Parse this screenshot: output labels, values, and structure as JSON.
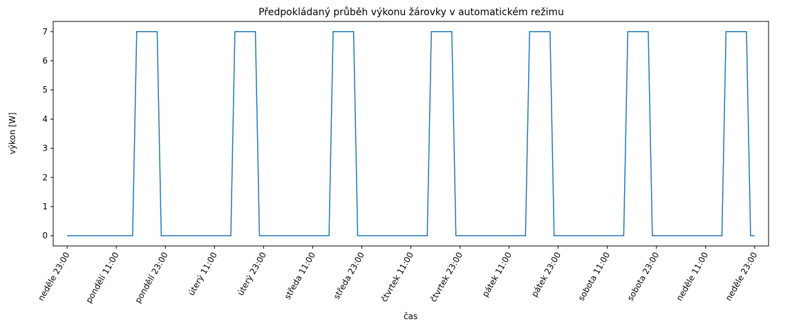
{
  "chart_data": {
    "type": "line",
    "title": "Předpokládaný průběh výkonu žárovky v automatickém režimu",
    "xlabel": "čas",
    "ylabel": "výkon [W]",
    "x": [
      0,
      16,
      17,
      22,
      23,
      40,
      41,
      46,
      47,
      64,
      65,
      70,
      71,
      88,
      89,
      94,
      95,
      112,
      113,
      118,
      119,
      136,
      137,
      142,
      143,
      160,
      161,
      166,
      167,
      168
    ],
    "series": [
      {
        "name": "výkon",
        "color": "#1f77b4",
        "values": [
          0,
          0,
          7,
          7,
          0,
          0,
          7,
          7,
          0,
          0,
          7,
          7,
          0,
          0,
          7,
          7,
          0,
          0,
          7,
          7,
          0,
          0,
          7,
          7,
          0,
          0,
          7,
          7,
          0,
          0
        ]
      }
    ],
    "xlim": [
      -3.4,
      171.4
    ],
    "ylim": [
      -0.35,
      7.35
    ],
    "xticks": [
      {
        "value": 0,
        "label": "neděle 23:00"
      },
      {
        "value": 12,
        "label": "pondělí 11:00"
      },
      {
        "value": 24,
        "label": "pondělí 23:00"
      },
      {
        "value": 36,
        "label": "úterý 11:00"
      },
      {
        "value": 48,
        "label": "úterý 23:00"
      },
      {
        "value": 60,
        "label": "středa 11:00"
      },
      {
        "value": 72,
        "label": "středa 23:00"
      },
      {
        "value": 84,
        "label": "čtvrtek 11:00"
      },
      {
        "value": 96,
        "label": "čtvrtek 23:00"
      },
      {
        "value": 108,
        "label": "pátek 11:00"
      },
      {
        "value": 120,
        "label": "pátek 23:00"
      },
      {
        "value": 132,
        "label": "sobota 11:00"
      },
      {
        "value": 144,
        "label": "sobota 23:00"
      },
      {
        "value": 156,
        "label": "neděle 11:00"
      },
      {
        "value": 168,
        "label": "neděle 23:00"
      }
    ],
    "yticks": [
      0,
      1,
      2,
      3,
      4,
      5,
      6,
      7
    ],
    "grid": false
  }
}
